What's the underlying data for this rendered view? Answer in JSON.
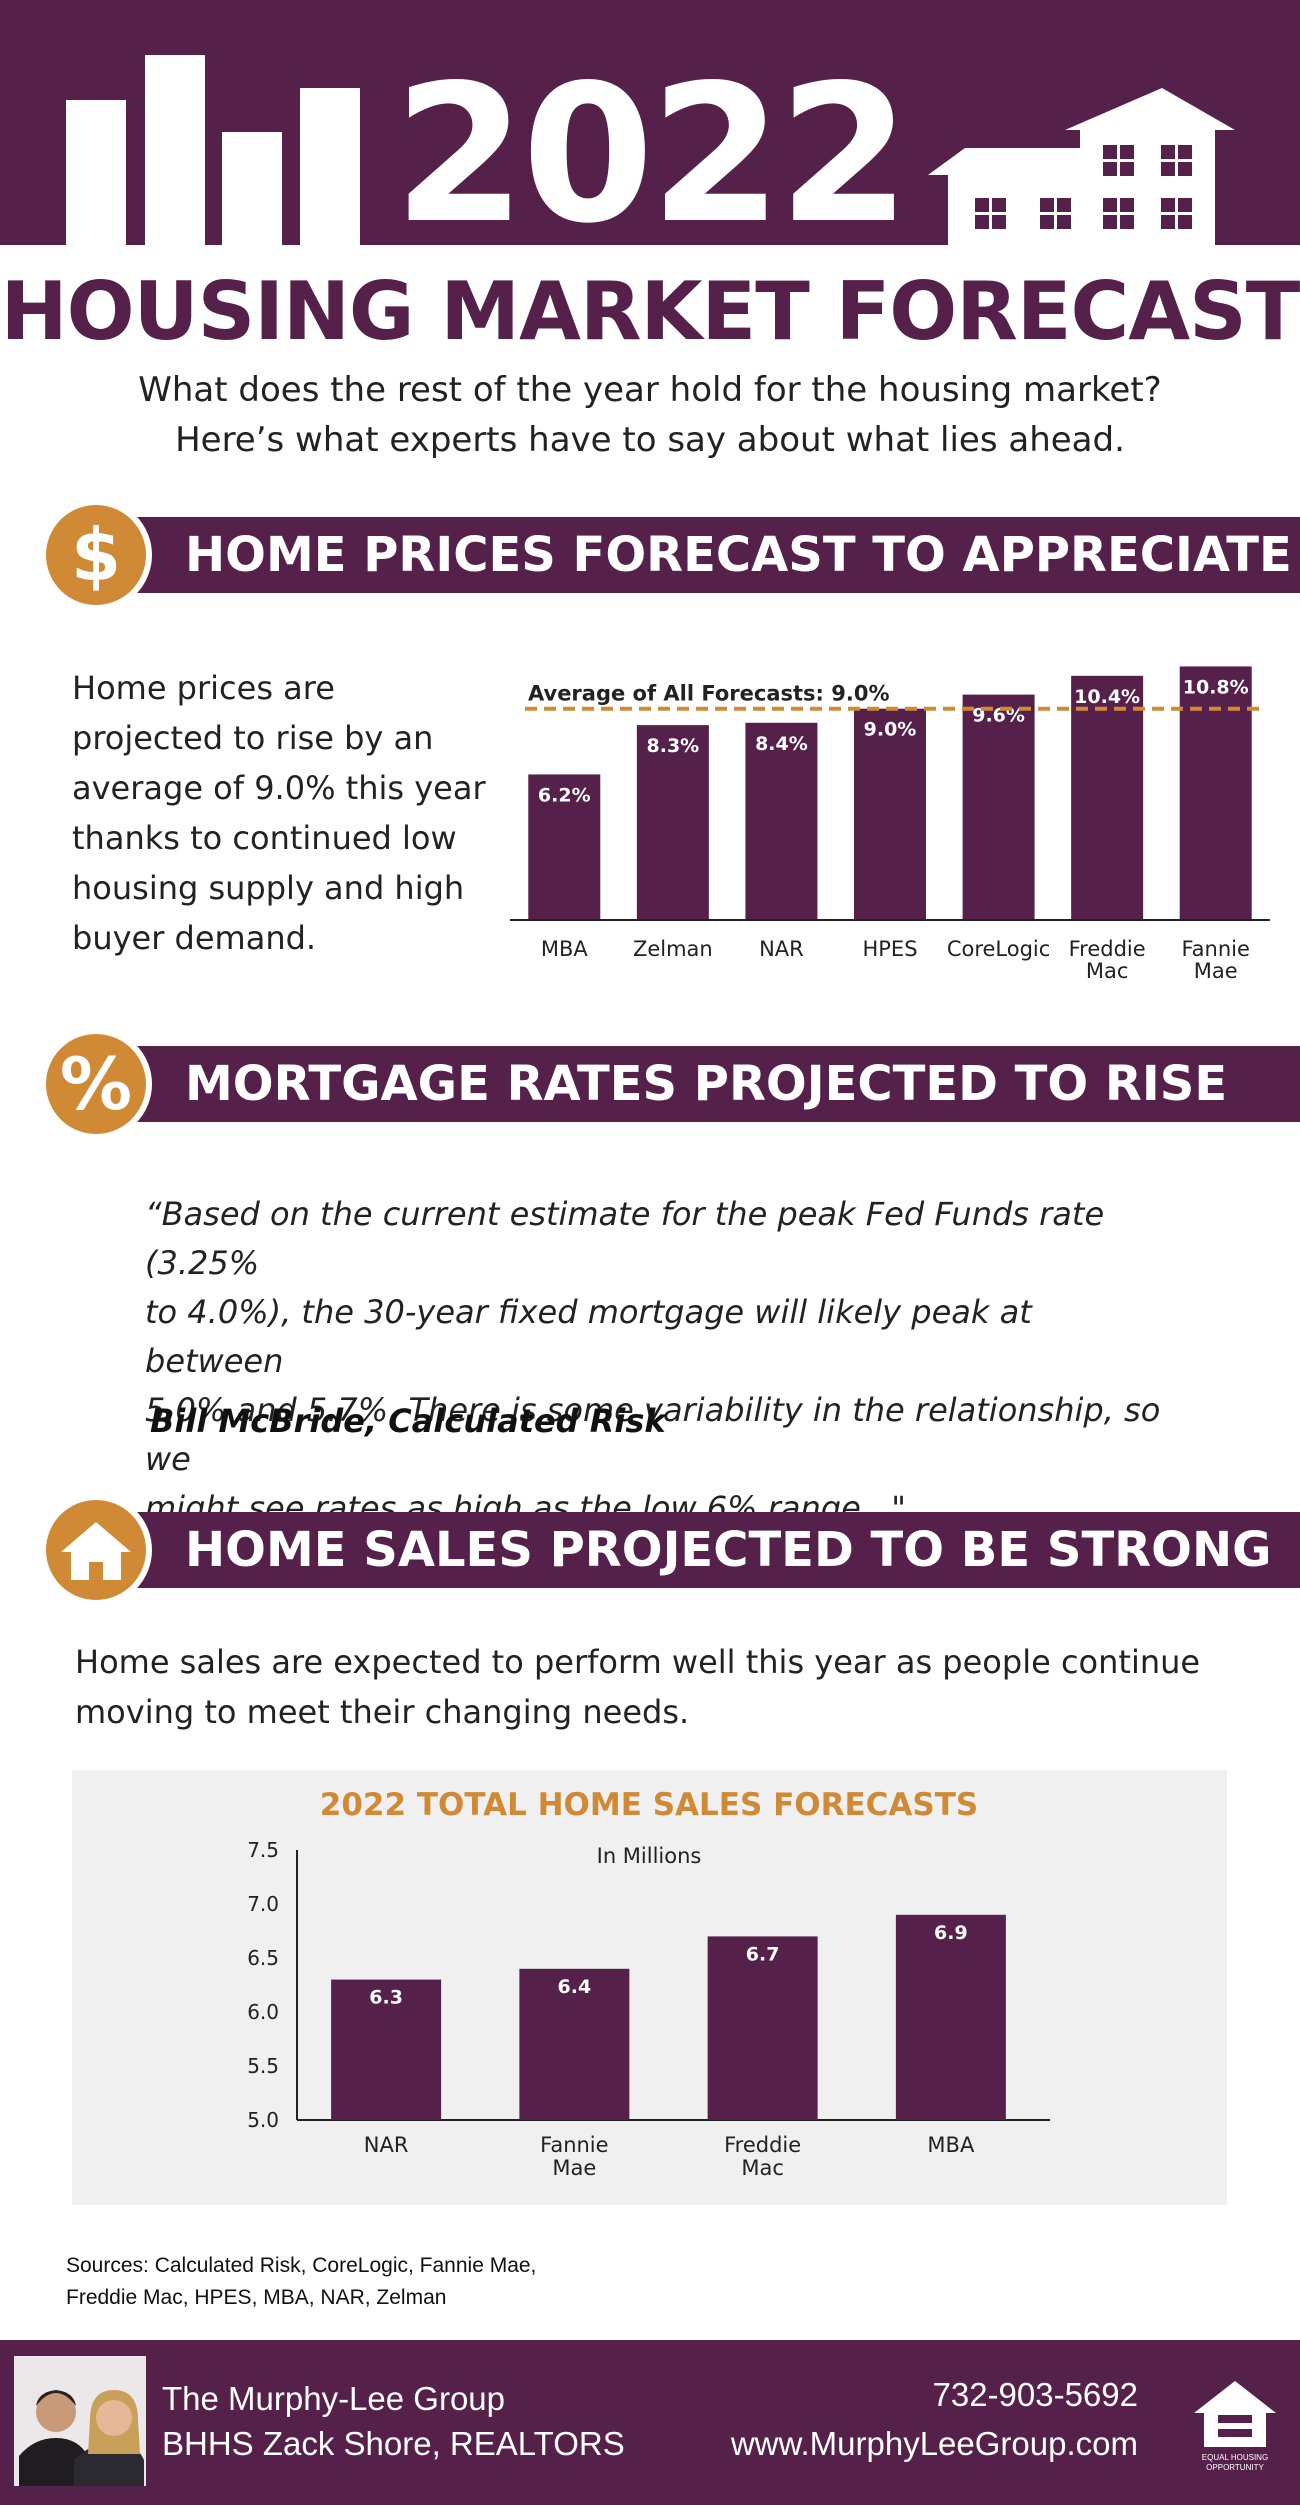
{
  "header": {
    "year": "2022",
    "title": "HOUSING MARKET FORECAST",
    "subtitle_line1": "What does the rest of the year hold for the housing market?",
    "subtitle_line2": "Here’s what experts have to say about what lies ahead."
  },
  "section1": {
    "icon": "dollar-sign",
    "icon_glyph": "$",
    "title": "HOME PRICES FORECAST TO APPRECIATE",
    "text_lines": [
      "Home prices are",
      "projected to rise by an",
      "average of 9.0% this year",
      "thanks to continued low",
      "housing supply and high",
      "buyer demand."
    ]
  },
  "section2": {
    "icon": "percent-sign",
    "icon_glyph": "%",
    "title": "MORTGAGE RATES PROJECTED TO RISE",
    "quote_lines": [
      "“Based on the current estimate for the peak Fed Funds rate (3.25%",
      "to 4.0%), the 30-year fixed mortgage will likely peak at between",
      "5.0% and 5.7%. There is some variability in the relationship, so we",
      "might see rates as high as the low 6% range...\""
    ],
    "author": "Bill McBride, Calculated Risk"
  },
  "section3": {
    "icon": "house-icon",
    "title": "HOME SALES PROJECTED TO BE STRONG",
    "text_lines": [
      "Home sales are expected to perform well this year as people continue",
      "moving to meet their changing needs."
    ]
  },
  "chart_data": [
    {
      "type": "bar",
      "title": "",
      "annotation": "Average of All Forecasts: 9.0%",
      "reference_line": 9.0,
      "categories": [
        [
          "MBA"
        ],
        [
          "Zelman"
        ],
        [
          "NAR"
        ],
        [
          "HPES"
        ],
        [
          "CoreLogic"
        ],
        [
          "Freddie",
          "Mac"
        ],
        [
          "Fannie",
          "Mae"
        ]
      ],
      "values": [
        6.2,
        8.3,
        8.4,
        9.0,
        9.6,
        10.4,
        10.8
      ],
      "value_labels": [
        "6.2%",
        "8.3%",
        "8.4%",
        "9.0%",
        "9.6%",
        "10.4%",
        "10.8%"
      ],
      "ylim": [
        0,
        11.5
      ],
      "bar_color": "#55214a",
      "line_color": "#d08a35"
    },
    {
      "type": "bar",
      "title": "2022 TOTAL HOME SALES FORECASTS",
      "subtitle": "In Millions",
      "categories": [
        [
          "NAR"
        ],
        [
          "Fannie",
          "Mae"
        ],
        [
          "Freddie",
          "Mac"
        ],
        [
          "MBA"
        ]
      ],
      "values": [
        6.3,
        6.4,
        6.7,
        6.9
      ],
      "value_labels": [
        "6.3",
        "6.4",
        "6.7",
        "6.9"
      ],
      "yticks": [
        "5.0",
        "5.5",
        "6.0",
        "6.5",
        "7.0",
        "7.5"
      ],
      "ylim": [
        5.0,
        7.5
      ],
      "bar_color": "#55214a",
      "title_color": "#d08a35"
    }
  ],
  "sources": {
    "line1": "Sources: Calculated Risk, CoreLogic, Fannie Mae,",
    "line2": "Freddie Mac, HPES, MBA, NAR, Zelman"
  },
  "footer": {
    "company": "The Murphy-Lee Group",
    "brokerage": "BHHS Zack Shore, REALTORS",
    "phone": "732-903-5692",
    "website": "www.MurphyLeeGroup.com",
    "logo_text_line1": "EQUAL HOUSING",
    "logo_text_line2": "OPPORTUNITY"
  },
  "colors": {
    "purple": "#55214a",
    "orange": "#d08a35",
    "panel": "#f0f0f0"
  }
}
